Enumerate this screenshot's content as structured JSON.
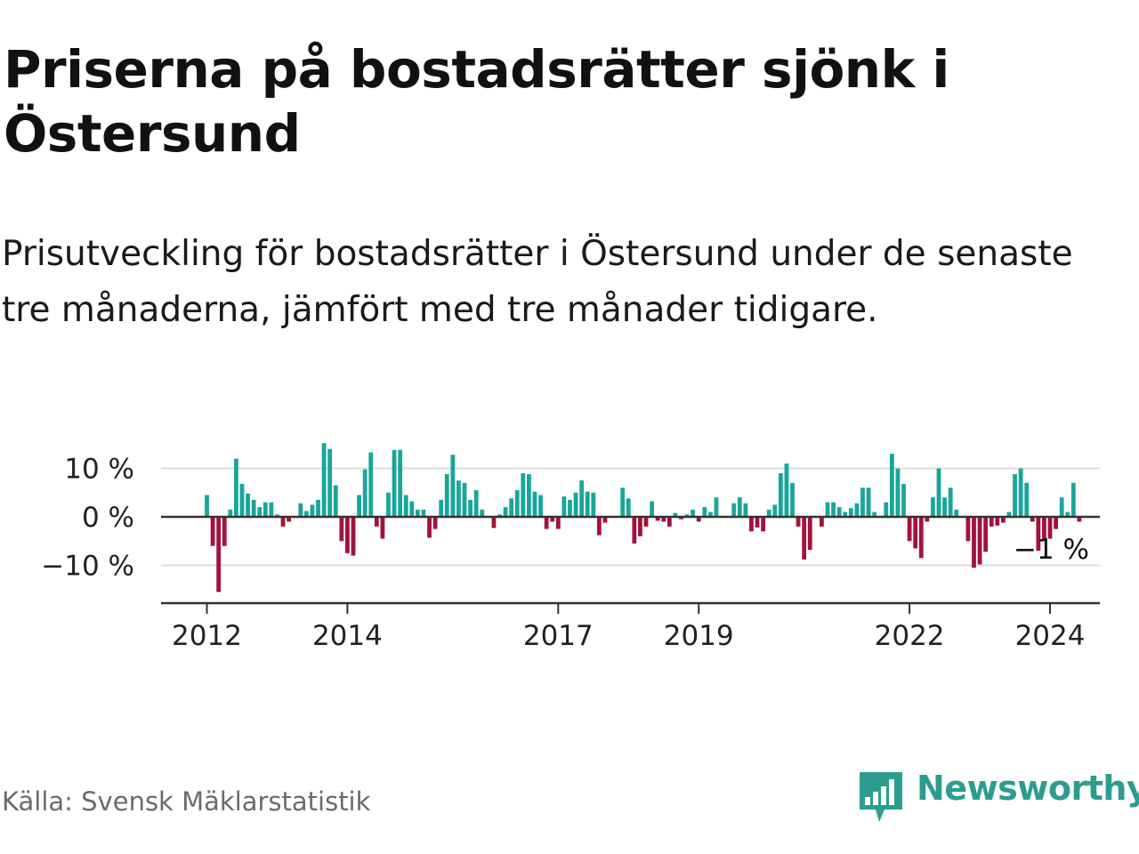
{
  "title": "Priserna på bostadsrätter sjönk i Östersund",
  "subtitle": "Prisutveckling för bostadsrätter i Östersund under de senaste tre månaderna, jämfört med tre månader tidigare.",
  "source": "Källa: Svensk Mäklarstatistik",
  "brand": {
    "name": "Newsworthy",
    "icon": "newsworthy-bar-chart-icon",
    "color": "#2a9d8f"
  },
  "colors": {
    "positive": "#19a69a",
    "negative": "#a3123e",
    "grid": "#dddddd",
    "axis": "#333333"
  },
  "chart_data": {
    "type": "bar",
    "title": "Priserna på bostadsrätter sjönk i Östersund",
    "xlabel": "",
    "ylabel": "",
    "unit": "%",
    "ylim": [
      -17,
      17
    ],
    "y_ticks": [
      {
        "value": 10,
        "label": "10 %"
      },
      {
        "value": 0,
        "label": "0 %"
      },
      {
        "value": -10,
        "label": "−10 %"
      }
    ],
    "x_ticks": [
      "2012",
      "2014",
      "2017",
      "2019",
      "2022",
      "2024"
    ],
    "x_start": "2012-01",
    "period": "monthly",
    "last_value_label": "−1 %",
    "values": [
      4.5,
      -6,
      -15.5,
      -6,
      1.5,
      12,
      6.8,
      4.8,
      3.5,
      2,
      3,
      3,
      0.5,
      -2,
      -1,
      0,
      2.8,
      1.2,
      2.5,
      3.5,
      15.2,
      14,
      6.5,
      -5,
      -7.5,
      -8,
      4.5,
      9.8,
      13.3,
      -2,
      -4.5,
      5,
      13.8,
      13.8,
      4.5,
      3.2,
      1.5,
      1.5,
      -4.3,
      -2.5,
      3.5,
      8.8,
      12.8,
      7.5,
      7,
      3.5,
      5.5,
      1.5,
      0,
      -2.3,
      0.5,
      2,
      3.8,
      5.5,
      9,
      8.8,
      5.2,
      4.5,
      -2.5,
      -1,
      -2.5,
      4.2,
      3.5,
      5,
      7.5,
      5.2,
      5,
      -3.8,
      -1.2,
      0,
      0,
      6,
      3.8,
      -5.5,
      -4,
      -2,
      3.2,
      -0.8,
      -1,
      -2,
      0.8,
      -0.5,
      0.5,
      1.5,
      -1,
      2,
      1,
      4,
      0,
      0,
      2.8,
      4,
      2.8,
      -3,
      -2.2,
      -3,
      1.5,
      2.5,
      9,
      11,
      7,
      -2,
      -8.8,
      -6.8,
      0,
      -2,
      3,
      3,
      2,
      1,
      1.8,
      2.8,
      6,
      6,
      1,
      0,
      3,
      13,
      10,
      6.8,
      -5,
      -6.5,
      -8.5,
      -1,
      4,
      10,
      4,
      6,
      1.5,
      0,
      -5,
      -10.5,
      -9.8,
      -7.2,
      -2,
      -1.8,
      -1.2,
      1,
      8.8,
      10,
      7,
      -1,
      -7,
      -4.5,
      -4.5,
      -2.5,
      4,
      1,
      7,
      -1
    ]
  }
}
